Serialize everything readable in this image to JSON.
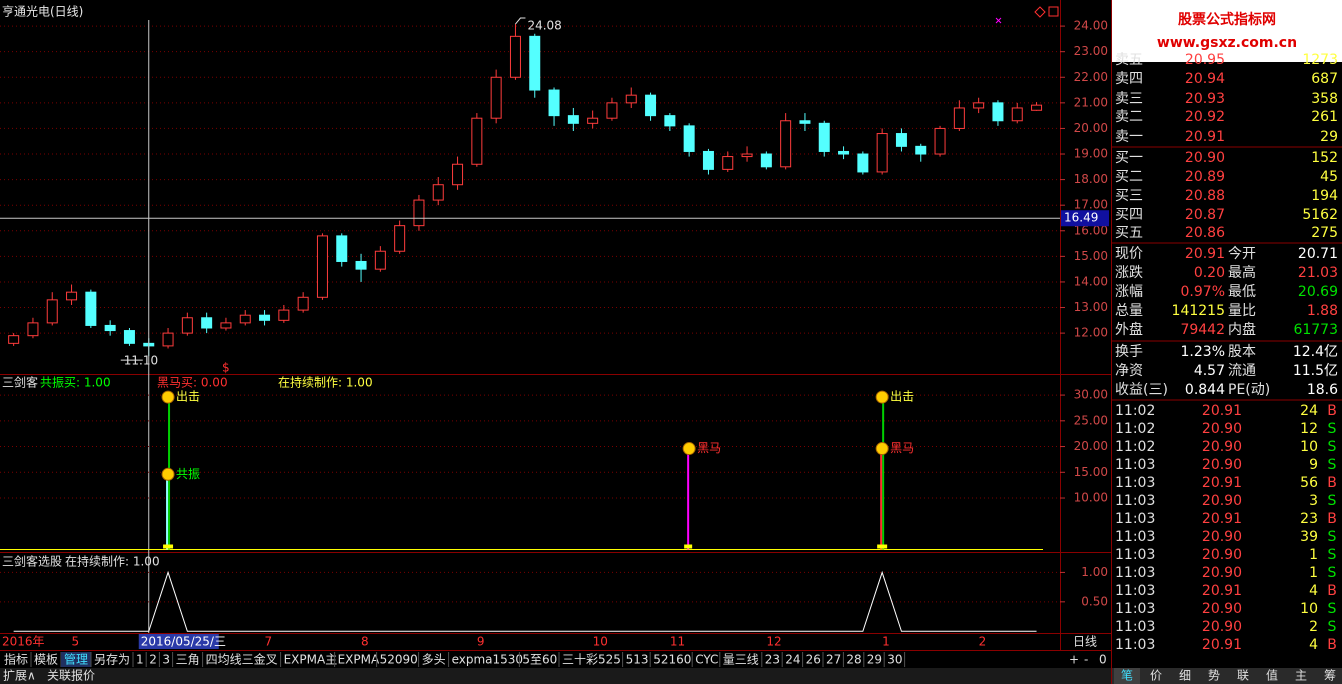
{
  "price_chart": {
    "type": "candlestick",
    "title": "亨通光电(日线)",
    "ylim": [
      10.48,
      25.02
    ],
    "yticks": [
      {
        "value": 12,
        "label": "12.00"
      },
      {
        "value": 13,
        "label": "13.00"
      },
      {
        "value": 14,
        "label": "14.00"
      },
      {
        "value": 15,
        "label": "15.00"
      },
      {
        "value": 16,
        "label": "16.00"
      },
      {
        "value": 17,
        "label": "17.00"
      },
      {
        "value": 18,
        "label": "18.00"
      },
      {
        "value": 19,
        "label": "19.00"
      },
      {
        "value": 20,
        "label": "20.00"
      },
      {
        "value": 21,
        "label": "21.00"
      },
      {
        "value": 22,
        "label": "22.00"
      },
      {
        "value": 23,
        "label": "23.00"
      },
      {
        "value": 24,
        "label": "24.00"
      }
    ],
    "up_color": "#ff3c3c",
    "down_color": "#54ffff",
    "grid_color": "#7a0000",
    "candles": [
      [
        11.6,
        12.0,
        11.5,
        11.9
      ],
      [
        11.9,
        12.6,
        11.8,
        12.4
      ],
      [
        12.4,
        13.6,
        12.3,
        13.3
      ],
      [
        13.3,
        13.9,
        13.1,
        13.6
      ],
      [
        13.6,
        13.7,
        12.2,
        12.3
      ],
      [
        12.3,
        12.5,
        11.9,
        12.1
      ],
      [
        12.1,
        12.2,
        11.5,
        11.6
      ],
      [
        11.6,
        11.8,
        11.1,
        11.5
      ],
      [
        11.5,
        12.2,
        11.4,
        12.0
      ],
      [
        12.0,
        12.8,
        11.9,
        12.6
      ],
      [
        12.6,
        12.8,
        12.0,
        12.2
      ],
      [
        12.2,
        12.6,
        12.1,
        12.4
      ],
      [
        12.4,
        12.9,
        12.3,
        12.7
      ],
      [
        12.7,
        12.9,
        12.3,
        12.5
      ],
      [
        12.5,
        13.1,
        12.4,
        12.9
      ],
      [
        12.9,
        13.6,
        12.8,
        13.4
      ],
      [
        13.4,
        15.9,
        13.3,
        15.8
      ],
      [
        15.8,
        15.9,
        14.6,
        14.8
      ],
      [
        14.8,
        15.1,
        14.0,
        14.5
      ],
      [
        14.5,
        15.4,
        14.4,
        15.2
      ],
      [
        15.2,
        16.4,
        15.1,
        16.2
      ],
      [
        16.2,
        17.4,
        16.0,
        17.2
      ],
      [
        17.2,
        18.1,
        17.0,
        17.8
      ],
      [
        17.8,
        18.9,
        17.6,
        18.6
      ],
      [
        18.6,
        20.6,
        18.5,
        20.4
      ],
      [
        20.4,
        22.3,
        20.2,
        22.0
      ],
      [
        22.0,
        24.08,
        21.9,
        23.6
      ],
      [
        23.6,
        23.7,
        21.2,
        21.5
      ],
      [
        21.5,
        21.6,
        20.1,
        20.5
      ],
      [
        20.5,
        20.8,
        19.9,
        20.2
      ],
      [
        20.2,
        20.7,
        20.0,
        20.4
      ],
      [
        20.4,
        21.2,
        20.3,
        21.0
      ],
      [
        21.0,
        21.6,
        20.8,
        21.3
      ],
      [
        21.3,
        21.4,
        20.3,
        20.5
      ],
      [
        20.5,
        20.6,
        19.9,
        20.1
      ],
      [
        20.1,
        20.2,
        18.9,
        19.1
      ],
      [
        19.1,
        19.2,
        18.2,
        18.4
      ],
      [
        18.4,
        19.1,
        18.3,
        18.9
      ],
      [
        18.9,
        19.3,
        18.7,
        19.0
      ],
      [
        19.0,
        19.1,
        18.4,
        18.5
      ],
      [
        18.5,
        20.6,
        18.4,
        20.3
      ],
      [
        20.3,
        20.6,
        19.9,
        20.2
      ],
      [
        20.2,
        20.3,
        18.9,
        19.1
      ],
      [
        19.1,
        19.3,
        18.8,
        19.0
      ],
      [
        19.0,
        19.1,
        18.2,
        18.3
      ],
      [
        18.3,
        20.0,
        18.2,
        19.8
      ],
      [
        19.8,
        20.0,
        19.1,
        19.3
      ],
      [
        19.3,
        19.4,
        18.7,
        19.0
      ],
      [
        19.0,
        20.1,
        18.9,
        20.0
      ],
      [
        20.0,
        21.1,
        19.9,
        20.8
      ],
      [
        20.8,
        21.2,
        20.6,
        21.0
      ],
      [
        21.0,
        21.1,
        20.1,
        20.3
      ],
      [
        20.3,
        21.0,
        20.2,
        20.8
      ],
      [
        20.71,
        21.03,
        20.69,
        20.91
      ]
    ],
    "high_marker": {
      "index": 26,
      "value": 24.08,
      "label": "24.08"
    },
    "low_marker": {
      "index": 7,
      "value": 11.1,
      "label": "11.10"
    },
    "dollar_marker": {
      "index": 11,
      "text": "$"
    },
    "cursor": {
      "index": 7,
      "price": 16.49,
      "date": "2016/05/25/三"
    }
  },
  "signal_chart": {
    "type": "signal",
    "header": [
      {
        "text": "三剑客",
        "color": "#e0e0e0"
      },
      {
        "text": "共振买: 1.00",
        "color": "#00ff00"
      },
      {
        "text": "黑马买: 0.00",
        "color": "#ff3030"
      },
      {
        "text": "在持续制作: 1.00",
        "color": "#ffff40"
      }
    ],
    "ylim": [
      -0.68,
      33.9
    ],
    "yticks": [
      {
        "value": 10,
        "label": "10.00"
      },
      {
        "value": 15,
        "label": "15.00"
      },
      {
        "value": 20,
        "label": "20.00"
      },
      {
        "value": 25,
        "label": "25.00"
      },
      {
        "value": 30,
        "label": "30.00"
      }
    ],
    "signals": [
      {
        "index": 8,
        "value": 30,
        "label": "出击",
        "color": "#00d000",
        "label_color": "#ffff40"
      },
      {
        "index": 8,
        "value": 15,
        "label": "共振",
        "color": "#90ffff",
        "label_color": "#00ff00"
      },
      {
        "index": 35,
        "value": 20,
        "label": "黑马",
        "color": "#ff00ff",
        "label_color": "#ff3030"
      },
      {
        "index": 45,
        "value": 30,
        "label": "出击",
        "color": "#00d000",
        "label_color": "#ffff40"
      },
      {
        "index": 45,
        "value": 20,
        "label": "黑马",
        "color": "#ff3030",
        "label_color": "#ff3030"
      }
    ]
  },
  "select_chart": {
    "type": "line",
    "header": [
      {
        "text": "三剑客选股",
        "color": "#e0e0e0"
      },
      {
        "text": "在持续制作: 1.00",
        "color": "#e0e0e0"
      }
    ],
    "ylim": [
      -0.03,
      1.33
    ],
    "yticks": [
      {
        "value": 0.5,
        "label": "0.50"
      },
      {
        "value": 1,
        "label": "1.00"
      }
    ],
    "color": "#ffffff",
    "values": [
      0,
      0,
      0,
      0,
      0,
      0,
      0,
      0,
      1,
      0,
      0,
      0,
      0,
      0,
      0,
      0,
      0,
      0,
      0,
      0,
      0,
      0,
      0,
      0,
      0,
      0,
      0,
      0,
      0,
      0,
      0,
      0,
      0,
      0,
      0,
      0,
      0,
      0,
      0,
      0,
      0,
      0,
      0,
      0,
      0,
      1,
      0,
      0,
      0,
      0,
      0,
      0,
      0,
      0
    ]
  },
  "date_axis": {
    "year": "2016年",
    "months": [
      {
        "label": "5",
        "index": 3
      },
      {
        "label": "7",
        "index": 13
      },
      {
        "label": "8",
        "index": 18
      },
      {
        "label": "9",
        "index": 24
      },
      {
        "label": "10",
        "index": 30
      },
      {
        "label": "11",
        "index": 34
      },
      {
        "label": "12",
        "index": 39
      },
      {
        "label": "1",
        "index": 45
      },
      {
        "label": "2",
        "index": 50
      }
    ],
    "period": "日线"
  },
  "toolbar": {
    "items": [
      "指标",
      "模板",
      "管理",
      "另存为",
      "1",
      "2",
      "3",
      "三角",
      "四均线三金叉",
      "EXPMA主",
      "EXPMA",
      "52090",
      "多头",
      "expma1530",
      "5至60",
      "三十彩525",
      "513",
      "52160",
      "CYC",
      "量三线",
      "23",
      "24",
      "26",
      "27",
      "28",
      "29",
      "30"
    ],
    "active": 2,
    "zoom": [
      "+",
      "-",
      "0"
    ],
    "bottom": [
      "扩展∧",
      "关联报价"
    ],
    "tabs": [
      "笔",
      "价",
      "细",
      "势",
      "联",
      "值",
      "主",
      "筹"
    ]
  },
  "quote": {
    "logo": "股票公式指标网",
    "logo_url": "www.gsxz.com.cn",
    "book": [
      {
        "label": "卖五",
        "price": "20.95",
        "volume": "1273"
      },
      {
        "label": "卖四",
        "price": "20.94",
        "volume": "687"
      },
      {
        "label": "卖三",
        "price": "20.93",
        "volume": "358"
      },
      {
        "label": "卖二",
        "price": "20.92",
        "volume": "261"
      },
      {
        "label": "卖一",
        "price": "20.91",
        "volume": "29"
      },
      {
        "label": "买一",
        "price": "20.90",
        "volume": "152"
      },
      {
        "label": "买二",
        "price": "20.89",
        "volume": "45"
      },
      {
        "label": "买三",
        "price": "20.88",
        "volume": "194"
      },
      {
        "label": "买四",
        "price": "20.87",
        "volume": "5162"
      },
      {
        "label": "买五",
        "price": "20.86",
        "volume": "275"
      }
    ],
    "stats": [
      [
        {
          "label": "现价",
          "value": "20.91",
          "color": "#ff4040"
        },
        {
          "label": "今开",
          "value": "20.71",
          "color": "#ffffff"
        }
      ],
      [
        {
          "label": "涨跌",
          "value": "0.20",
          "color": "#ff4040"
        },
        {
          "label": "最高",
          "value": "21.03",
          "color": "#ff4040"
        }
      ],
      [
        {
          "label": "涨幅",
          "value": "0.97%",
          "color": "#ff4040"
        },
        {
          "label": "最低",
          "value": "20.69",
          "color": "#00e000"
        }
      ],
      [
        {
          "label": "总量",
          "value": "141215",
          "color": "#ffff40"
        },
        {
          "label": "量比",
          "value": "1.88",
          "color": "#ff4040"
        }
      ],
      [
        {
          "label": "外盘",
          "value": "79442",
          "color": "#ff4040"
        },
        {
          "label": "内盘",
          "value": "61773",
          "color": "#00e000"
        }
      ],
      [
        {
          "label": "换手",
          "value": "1.23%",
          "color": "#ffffff"
        },
        {
          "label": "股本",
          "value": "12.4亿",
          "color": "#ffffff"
        }
      ],
      [
        {
          "label": "净资",
          "value": "4.57",
          "color": "#ffffff"
        },
        {
          "label": "流通",
          "value": "11.5亿",
          "color": "#ffffff"
        }
      ],
      [
        {
          "label": "收益(三)",
          "value": "0.844",
          "color": "#ffffff"
        },
        {
          "label": "PE(动)",
          "value": "18.6",
          "color": "#ffffff"
        }
      ]
    ],
    "side_colors": {
      "B": "#ff4040",
      "S": "#00e000"
    },
    "trades": [
      [
        "11:02",
        "20.91",
        "24",
        "B"
      ],
      [
        "11:02",
        "20.90",
        "12",
        "S"
      ],
      [
        "11:02",
        "20.90",
        "10",
        "S"
      ],
      [
        "11:03",
        "20.90",
        "9",
        "S"
      ],
      [
        "11:03",
        "20.91",
        "56",
        "B"
      ],
      [
        "11:03",
        "20.90",
        "3",
        "S"
      ],
      [
        "11:03",
        "20.91",
        "23",
        "B"
      ],
      [
        "11:03",
        "20.90",
        "39",
        "S"
      ],
      [
        "11:03",
        "20.90",
        "1",
        "S"
      ],
      [
        "11:03",
        "20.90",
        "1",
        "S"
      ],
      [
        "11:03",
        "20.91",
        "4",
        "B"
      ],
      [
        "11:03",
        "20.90",
        "10",
        "S"
      ],
      [
        "11:03",
        "20.90",
        "2",
        "S"
      ],
      [
        "11:03",
        "20.91",
        "4",
        "B"
      ]
    ]
  }
}
